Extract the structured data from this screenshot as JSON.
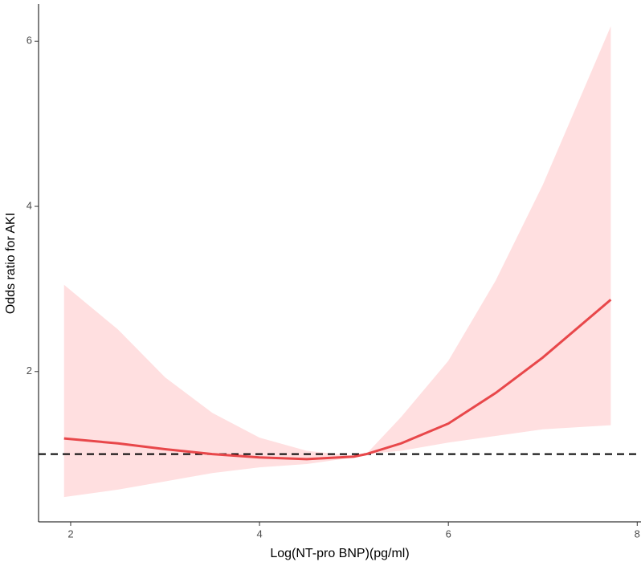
{
  "chart_data": {
    "type": "spline",
    "x_label": "Log(NT-pro BNP)(pg/ml)",
    "y_label": "Odds ratio for AKI",
    "x": [
      1.93,
      2.5,
      3,
      3.5,
      4,
      4.5,
      5,
      5.13,
      5.5,
      6,
      6.5,
      7,
      7.72
    ],
    "series": [
      {
        "color": "#e8474a",
        "band_color": "#ffdfe0",
        "values": [
          1.19,
          1.13,
          1.06,
          1.0,
          0.96,
          0.94,
          0.97,
          1.0,
          1.13,
          1.37,
          1.74,
          2.17,
          2.87
        ],
        "lower": [
          0.48,
          0.57,
          0.67,
          0.77,
          0.84,
          0.88,
          0.96,
          1.0,
          1.04,
          1.14,
          1.22,
          1.3,
          1.35
        ],
        "upper": [
          3.05,
          2.51,
          1.93,
          1.5,
          1.2,
          1.04,
          0.98,
          1.0,
          1.45,
          2.13,
          3.1,
          4.26,
          6.18
        ]
      }
    ],
    "reference_line": 1,
    "xlim": [
      1.66,
      8.04
    ],
    "xticks": [
      2,
      4,
      6,
      8
    ],
    "ylim": [
      0.18,
      6.45
    ],
    "yticks": [
      2,
      4,
      6
    ]
  }
}
